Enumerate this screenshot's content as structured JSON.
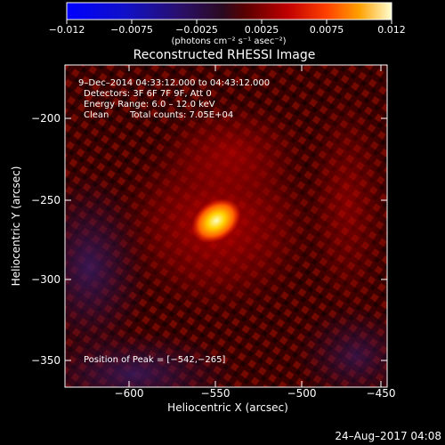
{
  "colorbar": {
    "ticks": [
      "−0.012",
      "−0.0075",
      "−0.0025",
      "0.0025",
      "0.0075",
      "0.012"
    ],
    "unit_label": "(photons cm⁻² s⁻¹ asec⁻²)"
  },
  "figure": {
    "title": "Reconstructed RHESSI Image",
    "xlabel": "Heliocentric X (arcsec)",
    "ylabel": "Heliocentric Y (arcsec)",
    "x_ticks": [
      "−600",
      "−550",
      "−500",
      "−450"
    ],
    "y_ticks": [
      "−200",
      "−250",
      "−300",
      "−350"
    ]
  },
  "annotations": {
    "time_range": "9–Dec–2014 04:33:12.000 to 04:43:12.000",
    "detectors": "Detectors: 3F 6F 7F 9F, Att 0",
    "energy_range": "Energy Range: 6.0 – 12.0 keV",
    "method": "Clean",
    "total_counts": "Total counts: 7.05E+04",
    "peak_position": "Position of Peak = [−542,−265]"
  },
  "footer": {
    "date": "24–Aug–2017 04:08"
  }
}
